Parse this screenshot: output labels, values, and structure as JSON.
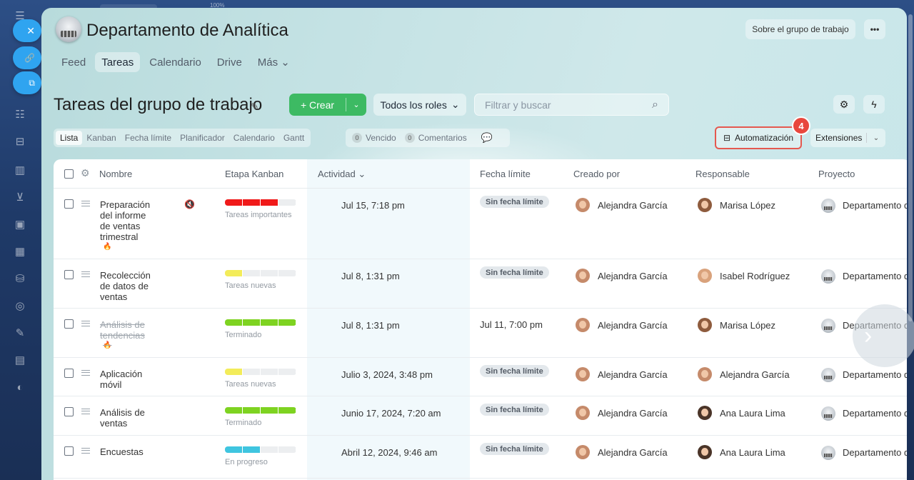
{
  "topbar": {
    "zoom": "100%"
  },
  "sidebar": {
    "icons": [
      "menu-icon",
      "close-icon",
      "link-icon",
      "external-link-icon",
      "funnel-icon",
      "robot-icon",
      "chart-icon",
      "cart-icon",
      "id-card-icon",
      "calendar-icon",
      "database-icon",
      "target-icon",
      "pen-icon",
      "document-icon",
      "help-icon"
    ]
  },
  "header": {
    "group_title": "Departamento de Analítica",
    "about_label": "Sobre el grupo de trabajo",
    "more_label": "•••"
  },
  "nav": {
    "feed": "Feed",
    "tareas": "Tareas",
    "calendario": "Calendario",
    "drive": "Drive",
    "mas": "Más ⌄"
  },
  "toolbar": {
    "page_title": "Tareas del grupo de trabajo",
    "create_label": "+ Crear",
    "roles_label": "Todos los roles",
    "search_placeholder": "Filtrar y buscar"
  },
  "views": {
    "lista": "Lista",
    "kanban": "Kanban",
    "fecha": "Fecha límite",
    "planificador": "Planificador",
    "calendario": "Calendario",
    "gantt": "Gantt"
  },
  "counters": {
    "vencido_count": "0",
    "vencido_label": "Vencido",
    "comentarios_count": "0",
    "comentarios_label": "Comentarios"
  },
  "automation": {
    "label": "Automatización",
    "step_badge": "4"
  },
  "extensions": {
    "label": "Extensiones"
  },
  "table": {
    "headers": {
      "nombre": "Nombre",
      "etapa": "Etapa Kanban",
      "actividad": "Actividad ⌄",
      "fecha": "Fecha límite",
      "creado": "Creado por",
      "responsable": "Responsable",
      "proyecto": "Proyecto"
    },
    "rows": [
      {
        "name": "Preparación del informe de ventas trimestral",
        "stage": "Tareas importantes",
        "stage_color": "#f01a1a",
        "stage_level": 0.75,
        "activity": "Jul 15, 7:18 pm",
        "deadline": "Sin fecha límite",
        "creator": "Alejandra García",
        "responsible": "Marisa López",
        "project": "Departamento de Analítica"
      },
      {
        "name": "Recolección de datos de ventas",
        "stage": "Tareas nuevas",
        "stage_color": "#f3ec5a",
        "stage_level": 0.25,
        "activity": "Jul 8, 1:31 pm",
        "deadline": "Sin fecha límite",
        "creator": "Alejandra García",
        "responsible": "Isabel Rodríguez",
        "project": "Departamento de Analítica"
      },
      {
        "name": "Análisis de tendencias",
        "stage": "Terminado",
        "stage_color": "#7ed321",
        "stage_level": 1.0,
        "activity": "Jul 8, 1:31 pm",
        "deadline": "Jul 11, 7:00 pm",
        "creator": "Alejandra García",
        "responsible": "Marisa López",
        "project": "Departamento de Analítica"
      },
      {
        "name": "Aplicación móvil",
        "stage": "Tareas nuevas",
        "stage_color": "#f3ec5a",
        "stage_level": 0.25,
        "activity": "Julio 3, 2024, 3:48 pm",
        "deadline": "Sin fecha límite",
        "creator": "Alejandra García",
        "responsible": "Alejandra García",
        "project": "Departamento de Analítica"
      },
      {
        "name": "Análisis de ventas",
        "stage": "Terminado",
        "stage_color": "#7ed321",
        "stage_level": 1.0,
        "activity": "Junio 17, 2024, 7:20 am",
        "deadline": "Sin fecha límite",
        "creator": "Alejandra García",
        "responsible": "Ana Laura Lima",
        "project": "Departamento de Analítica"
      },
      {
        "name": "Encuestas",
        "stage": "En progreso",
        "stage_color": "#3fc5e0",
        "stage_level": 0.5,
        "activity": "Abril 12, 2024, 9:46 am",
        "deadline": "Sin fecha límite",
        "creator": "Alejandra García",
        "responsible": "Ana Laura Lima",
        "project": "Departamento de Analítica"
      }
    ]
  }
}
